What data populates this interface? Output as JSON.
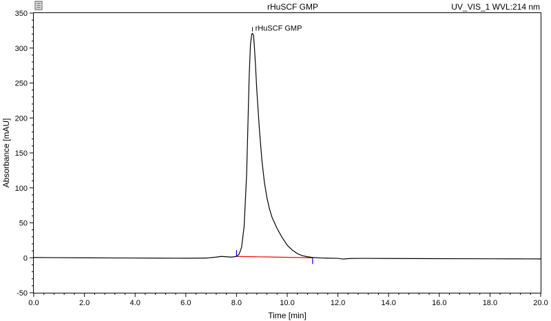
{
  "header": {
    "title": "rHuSCF GMP",
    "channel": "UV_VIS_1 WVL:214 nm"
  },
  "chart_data": {
    "type": "line",
    "title": "rHuSCF GMP",
    "xlabel": "Time [min]",
    "ylabel": "Absorbance [mAU]",
    "xlim": [
      0,
      20
    ],
    "ylim": [
      -50,
      350
    ],
    "x_ticks": [
      0,
      2,
      4,
      6,
      8,
      10,
      12,
      14,
      16,
      18,
      20
    ],
    "x_tick_labels": [
      "0.0",
      "2.0",
      "4.0",
      "6.0",
      "8.0",
      "10.0",
      "12.0",
      "14.0",
      "16.0",
      "18.0",
      "20.0"
    ],
    "y_ticks": [
      -50,
      0,
      50,
      100,
      150,
      200,
      250,
      300,
      350
    ],
    "y_tick_labels": [
      "-50",
      "0",
      "50",
      "100",
      "150",
      "200",
      "250",
      "300",
      "350"
    ],
    "grid": false,
    "series": [
      {
        "name": "",
        "color": "#000000",
        "x": [
          0,
          0.5,
          1,
          2,
          3,
          4,
          5,
          6,
          6.8,
          7.2,
          7.4,
          7.6,
          7.8,
          8.0,
          8.1,
          8.2,
          8.3,
          8.4,
          8.45,
          8.5,
          8.55,
          8.6,
          8.63,
          8.67,
          8.7,
          8.75,
          8.8,
          8.9,
          9.0,
          9.1,
          9.2,
          9.3,
          9.4,
          9.6,
          9.8,
          10.0,
          10.2,
          10.4,
          10.6,
          10.8,
          11.0,
          11.3,
          11.6,
          12.0,
          12.2,
          12.3,
          12.5,
          13,
          14,
          15,
          16,
          17,
          18,
          19,
          20
        ],
        "y": [
          0.5,
          0.3,
          0.2,
          0,
          -0.2,
          -0.3,
          -0.5,
          -0.6,
          -0.4,
          1.0,
          2.0,
          1.5,
          1.0,
          2.0,
          5,
          15,
          45,
          120,
          190,
          260,
          305,
          320,
          321,
          318,
          305,
          275,
          240,
          185,
          140,
          108,
          86,
          70,
          58,
          42,
          29,
          18,
          11,
          6,
          3,
          1.5,
          0.5,
          -0.2,
          -0.5,
          -0.8,
          -1.8,
          -1.5,
          -1.0,
          -0.8,
          -1.0,
          -1.1,
          -1.2,
          -1.3,
          -1.4,
          -1.5,
          -1.6
        ]
      }
    ],
    "baseline": {
      "color": "#ff0000",
      "x": [
        8.0,
        11.0
      ],
      "y": [
        2.0,
        0.0
      ]
    },
    "peak_markers": {
      "color": "#0000ff",
      "x": [
        8.0,
        11.0
      ]
    },
    "annotations": [
      {
        "text": "rHuSCF GMP",
        "x": 8.63,
        "y": 321
      }
    ]
  }
}
